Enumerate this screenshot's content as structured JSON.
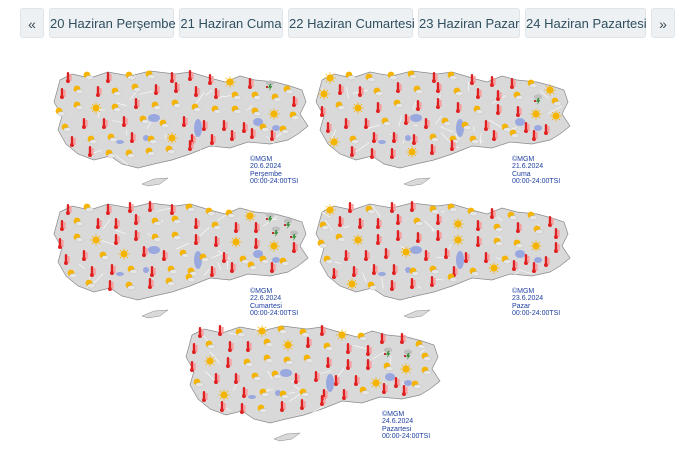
{
  "nav": {
    "prev_label": "«",
    "next_label": "»",
    "days": [
      {
        "label": "20 Haziran Perşembe"
      },
      {
        "label": "21 Haziran Cuma"
      },
      {
        "label": "22 Haziran Cumartesi"
      },
      {
        "label": "23 Haziran Pazar"
      },
      {
        "label": "24 Haziran Pazartesi"
      }
    ]
  },
  "maps": [
    {
      "source": "©MGM",
      "date": "20.6.2024",
      "weekday": "Perşembe",
      "period": "00:00-24:00TSI"
    },
    {
      "source": "©MGM",
      "date": "21.6.2024",
      "weekday": "Cuma",
      "period": "00:00-24:00TSI"
    },
    {
      "source": "©MGM",
      "date": "22.6.2024",
      "weekday": "Cumartesi",
      "period": "00:00-24:00TSI"
    },
    {
      "source": "©MGM",
      "date": "23.6.2024",
      "weekday": "Pazar",
      "period": "00:00-24:00TSI"
    },
    {
      "source": "©MGM",
      "date": "24.6.2024",
      "weekday": "Pazartesi",
      "period": "00:00-24:00TSI"
    }
  ],
  "icon_types": [
    "hot-thermometer-icon",
    "partly-cloudy-sun-icon",
    "sunny-icon",
    "thunderstorm-icon"
  ],
  "colors": {
    "tab_bg": "#eef1f4",
    "tab_text": "#2f4f5f",
    "land": "#d9d9d9",
    "lake": "#9aa8e0",
    "thermo": "#e02020",
    "sun": "#f5b400",
    "storm": "#2a8a2a",
    "caption": "#1e3fa0"
  }
}
